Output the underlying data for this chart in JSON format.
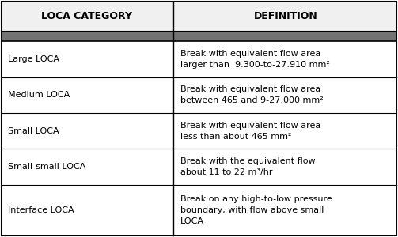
{
  "header": [
    "LOCA CATEGORY",
    "DEFINITION"
  ],
  "rows": [
    [
      "Large LOCA",
      "Break with equivalent flow area\nlarger than  9.300-to-27.910 mm²"
    ],
    [
      "Medium LOCA",
      "Break with equivalent flow area\nbetween 465 and 9-27.000 mm²"
    ],
    [
      "Small LOCA",
      "Break with equivalent flow area\nless than about 465 mm²"
    ],
    [
      "Small-small LOCA",
      "Break with the equivalent flow\nabout 11 to 22 m³/hr"
    ],
    [
      "Interface LOCA",
      "Break on any high-to-low pressure\nboundary, with flow above small\nLOCA"
    ]
  ],
  "col_split": 0.435,
  "header_bg": "#f0f0f0",
  "header_text_color": "#000000",
  "separator_bg": "#737373",
  "row_bg": "#ffffff",
  "border_color": "#000000",
  "header_fontsize": 9.0,
  "body_fontsize": 8.0,
  "fig_width": 5.03,
  "fig_height": 3.0,
  "dpi": 100,
  "outer_border_lw": 1.5,
  "inner_line_lw": 0.8,
  "col_line_lw": 1.0
}
